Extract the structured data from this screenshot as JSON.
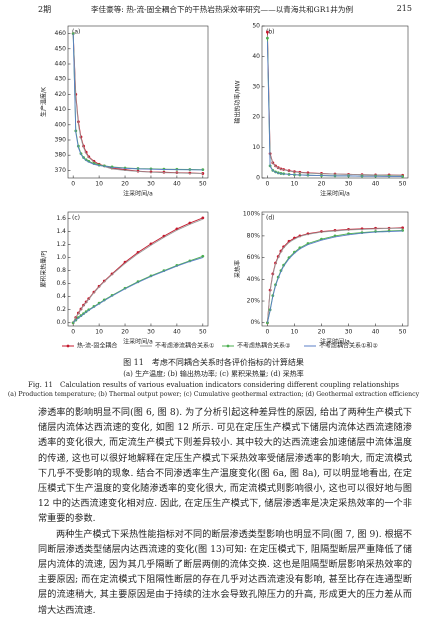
{
  "header": {
    "left": "2期",
    "center": "李佳豪等: 热-流-固全耦合下的干热岩热采效率研究——以青海共和GR1井为例",
    "right": "215"
  },
  "chart_data": [
    {
      "type": "line",
      "panel": "(a)",
      "x_label": "注采时间/a",
      "y_label": "生产温度/K",
      "x": [
        0,
        1,
        2,
        3,
        4,
        5,
        6,
        8,
        10,
        12,
        15,
        20,
        25,
        30,
        35,
        40,
        45,
        50
      ],
      "xlim": [
        -2,
        52
      ],
      "xticks": [
        0,
        10,
        20,
        30,
        40,
        50
      ],
      "ylim": [
        365,
        465
      ],
      "yticks": [
        370,
        380,
        390,
        400,
        410,
        420,
        430,
        440,
        450,
        460
      ],
      "series": [
        {
          "name": "热-流-固全耦合",
          "color": "#c41a2e",
          "markers": true,
          "values": [
            460,
            420,
            402,
            392,
            386,
            382,
            379,
            376,
            374,
            373,
            371.5,
            370.5,
            369.5,
            369,
            368.8,
            368.5,
            368.3,
            368
          ]
        },
        {
          "name": "不考虑渗流耦合关系①",
          "color": "#9a9a9a",
          "markers": false,
          "values": [
            460,
            418,
            400,
            391,
            385,
            381,
            378.5,
            375.5,
            373.5,
            372.5,
            371,
            370,
            369.3,
            368.8,
            368.5,
            368.3,
            368.1,
            368
          ]
        },
        {
          "name": "不考虑热耦合关系②",
          "color": "#4caf50",
          "markers": true,
          "values": [
            460,
            396,
            386,
            381,
            378.5,
            377,
            376,
            374.5,
            373.5,
            373,
            372.3,
            371.6,
            371.2,
            371,
            370.8,
            370.7,
            370.6,
            370.5
          ]
        },
        {
          "name": "不考虑耦合关系①和②",
          "color": "#5b7fc7",
          "markers": false,
          "values": [
            460,
            395,
            385,
            380.5,
            378,
            376.5,
            375.5,
            374,
            373.2,
            372.8,
            372,
            371.4,
            371,
            370.8,
            370.6,
            370.5,
            370.4,
            370.3
          ]
        }
      ]
    },
    {
      "type": "line",
      "panel": "(b)",
      "x_label": "注采时间/a",
      "y_label": "输出热功率/MW",
      "x": [
        0,
        1,
        2,
        3,
        4,
        5,
        6,
        8,
        10,
        12,
        15,
        20,
        25,
        30,
        35,
        40,
        45,
        50
      ],
      "xlim": [
        -2,
        52
      ],
      "xticks": [
        0,
        10,
        20,
        30,
        40,
        50
      ],
      "ylim": [
        0,
        50
      ],
      "yticks": [
        0,
        10,
        20,
        30,
        40,
        50
      ],
      "series": [
        {
          "color": "#c41a2e",
          "markers": true,
          "values": [
            48,
            8,
            5,
            4,
            3.4,
            3,
            2.8,
            2.4,
            2.1,
            1.9,
            1.7,
            1.5,
            1.3,
            1.2,
            1.1,
            1,
            1,
            0.9
          ]
        },
        {
          "color": "#9a9a9a",
          "markers": false,
          "values": [
            47,
            7.6,
            4.8,
            3.8,
            3.3,
            2.9,
            2.7,
            2.3,
            2,
            1.8,
            1.6,
            1.4,
            1.3,
            1.2,
            1.1,
            1,
            0.9,
            0.9
          ]
        },
        {
          "color": "#4caf50",
          "markers": true,
          "values": [
            46,
            4,
            2.5,
            2,
            1.7,
            1.5,
            1.4,
            1.2,
            1.1,
            1,
            0.9,
            0.8,
            0.7,
            0.7,
            0.6,
            0.6,
            0.6,
            0.5
          ]
        },
        {
          "color": "#5b7fc7",
          "markers": false,
          "values": [
            45,
            3.8,
            2.4,
            1.9,
            1.6,
            1.4,
            1.3,
            1.2,
            1.1,
            1,
            0.9,
            0.8,
            0.7,
            0.7,
            0.6,
            0.6,
            0.5,
            0.5
          ]
        }
      ]
    },
    {
      "type": "line",
      "panel": "(c)",
      "x_label": "注采时间/a",
      "y_label": "累积采热量/PJ",
      "x": [
        0,
        1,
        2,
        3,
        4,
        5,
        6,
        8,
        10,
        12,
        15,
        20,
        25,
        30,
        35,
        40,
        45,
        50
      ],
      "xlim": [
        -2,
        52
      ],
      "xticks": [
        0,
        10,
        20,
        30,
        40,
        50
      ],
      "ylim": [
        -0.05,
        1.7
      ],
      "yticks": [
        {
          "value": 0,
          "label": "0.0"
        },
        0.2,
        0.4,
        0.6,
        0.8,
        {
          "value": 1,
          "label": "1.0"
        },
        1.2,
        1.4,
        1.6
      ],
      "series": [
        {
          "color": "#c41a2e",
          "markers": true,
          "values": [
            0,
            0.08,
            0.15,
            0.21,
            0.27,
            0.32,
            0.37,
            0.47,
            0.56,
            0.64,
            0.75,
            0.93,
            1.08,
            1.21,
            1.33,
            1.44,
            1.53,
            1.61
          ]
        },
        {
          "color": "#9a9a9a",
          "markers": false,
          "values": [
            0,
            0.08,
            0.14,
            0.2,
            0.26,
            0.31,
            0.36,
            0.46,
            0.55,
            0.63,
            0.74,
            0.91,
            1.06,
            1.19,
            1.31,
            1.42,
            1.51,
            1.59
          ]
        },
        {
          "color": "#4caf50",
          "markers": true,
          "values": [
            0,
            0.04,
            0.08,
            0.11,
            0.14,
            0.17,
            0.2,
            0.25,
            0.3,
            0.35,
            0.42,
            0.53,
            0.63,
            0.72,
            0.8,
            0.88,
            0.95,
            1.02
          ]
        },
        {
          "color": "#5b7fc7",
          "markers": false,
          "values": [
            0,
            0.04,
            0.07,
            0.1,
            0.13,
            0.16,
            0.19,
            0.24,
            0.29,
            0.34,
            0.41,
            0.52,
            0.62,
            0.71,
            0.79,
            0.87,
            0.94,
            1.0
          ]
        }
      ]
    },
    {
      "type": "line",
      "panel": "(d)",
      "x_label": "注采时间/a",
      "y_label": "采热率",
      "x": [
        0,
        1,
        2,
        3,
        4,
        5,
        6,
        8,
        10,
        12,
        15,
        20,
        25,
        30,
        35,
        40,
        45,
        50
      ],
      "xlim": [
        -2,
        52
      ],
      "xticks": [
        0,
        10,
        20,
        30,
        40,
        50
      ],
      "ylim": [
        -3,
        102
      ],
      "yticks": [
        {
          "value": 0,
          "label": "0%"
        },
        {
          "value": 20,
          "label": "20%"
        },
        {
          "value": 40,
          "label": "40%"
        },
        {
          "value": 60,
          "label": "60%"
        },
        {
          "value": 80,
          "label": "80%"
        },
        {
          "value": 100,
          "label": "100%"
        }
      ],
      "series": [
        {
          "color": "#c41a2e",
          "markers": true,
          "values": [
            0,
            30,
            45,
            55,
            61,
            66,
            70,
            75,
            78,
            80,
            82,
            84,
            85,
            86,
            86.5,
            87,
            87,
            87.5
          ]
        },
        {
          "color": "#9a9a9a",
          "markers": false,
          "values": [
            0,
            29,
            44,
            54,
            60,
            65,
            69,
            74,
            77,
            79.5,
            81.5,
            83.5,
            84.5,
            85.5,
            86,
            86.5,
            87,
            87
          ]
        },
        {
          "color": "#4caf50",
          "markers": true,
          "values": [
            0,
            12,
            25,
            35,
            42,
            48,
            53,
            60,
            65,
            69,
            73,
            77,
            80,
            82,
            83,
            84,
            84.5,
            85
          ]
        },
        {
          "color": "#5b7fc7",
          "markers": false,
          "values": [
            0,
            11,
            24,
            34,
            41,
            47,
            52,
            59,
            64,
            68,
            72,
            76,
            79,
            81,
            82.5,
            83.5,
            84,
            84.5
          ]
        }
      ]
    }
  ],
  "figure": {
    "caption_cn": "图 11　考虑不同耦合关系时各评价指标的计算结果",
    "subcaption_cn": "(a) 生产温度; (b) 输出热功率; (c) 累积采热量; (d) 采热率",
    "caption_en": "Fig. 11　Calculation results of various evaluation indicators considering different coupling relationships",
    "subcaption_en": "(a) Production temperature; (b) Thermal output power; (c) Cumulative geothermal extraction; (d) Geothermal extraction efficiency"
  },
  "body": {
    "paragraphs": [
      "渗透率的影响明显不同(图 6, 图 8). 为了分析引起这种差异性的原因, 给出了两种生产模式下储层内流体达西流速的变化, 如图 12 所示. 可见在定压生产模式下储层内流体达西流速随渗透率的变化很大, 而定流生产模式下则差异较小. 其中较大的达西流速会加速储层中流体温度的传递, 这也可以很好地解释在定压生产模式下采热效率受储层渗透率的影响大, 而定流模式下几乎不受影响的现象. 结合不同渗透率生产温度变化(图 6a, 图 8a), 可以明显地看出, 在定压模式下生产温度的变化随渗透率的变化很大, 而定流模式则影响很小, 这也可以很好地与图 12 中的达西流速变化相对应. 因此, 在定压生产模式下, 储层渗透率是决定采热效率的一个非常重要的参数.",
      "两种生产模式下采热性能指标对不同的断层渗透类型影响也明显不同(图 7, 图 9). 根据不同断层渗透类型储层内达西流速的变化(图 13)可知: 在定压模式下, 阻隔型断层严重降低了储层内流体的流速, 因为其几乎隔断了断层两侧的流体交换. 这也是阻隔型断层影响采热效率的主要原因; 而在定流模式下阻隔性断层的存在几乎对达西流速没有影响, 甚至比存在连通型断层的流速稍大, 其主要原因是由于持续的注水会导致孔隙压力的升高, 形成更大的压力差从而增大达西流速."
    ]
  }
}
